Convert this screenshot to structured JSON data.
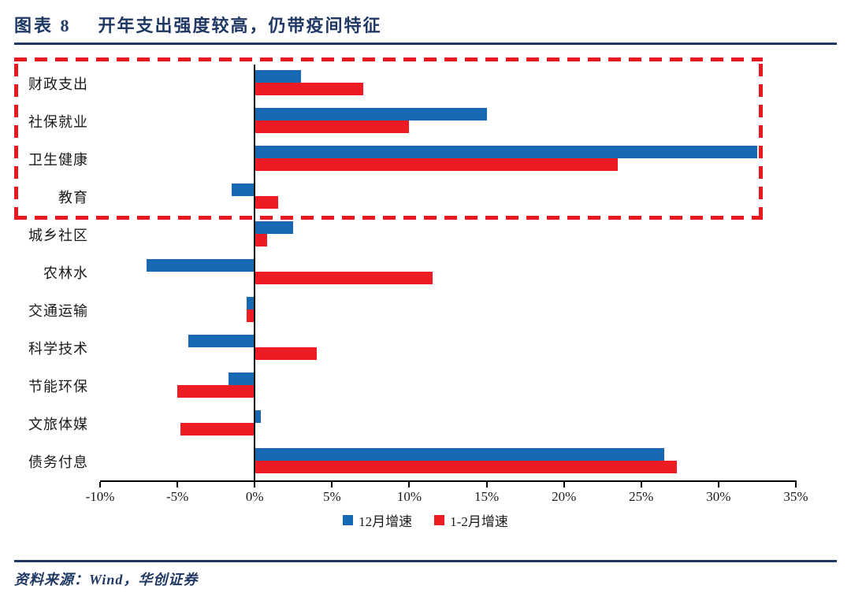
{
  "header": {
    "figure_label": "图表 8",
    "title": "开年支出强度较高，仍带疫间特征"
  },
  "chart_data": {
    "type": "bar",
    "orientation": "horizontal",
    "title": "开年支出强度较高，仍带疫间特征",
    "categories": [
      "财政支出",
      "社保就业",
      "卫生健康",
      "教育",
      "城乡社区",
      "农林水",
      "交通运输",
      "科学技术",
      "节能环保",
      "文旅体媒",
      "债务付息"
    ],
    "series": [
      {
        "name": "12月增速",
        "color": "#1868B4",
        "values": [
          3,
          15,
          32.5,
          -1.5,
          2.5,
          -7,
          -0.5,
          -4.3,
          -1.7,
          0.4,
          26.5
        ]
      },
      {
        "name": "1-2月增速",
        "color": "#ED1C24",
        "values": [
          7,
          10,
          23.5,
          1.5,
          0.8,
          11.5,
          -0.5,
          4,
          -5,
          -4.8,
          27.3
        ]
      }
    ],
    "xlim": [
      -10,
      35
    ],
    "x_ticks": [
      "-10%",
      "-5%",
      "0%",
      "5%",
      "10%",
      "15%",
      "20%",
      "25%",
      "30%",
      "35%"
    ],
    "x_tick_values": [
      -10,
      -5,
      0,
      5,
      10,
      15,
      20,
      25,
      30,
      35
    ],
    "grid": false,
    "legend_position": "bottom",
    "highlight": {
      "categories": [
        "财政支出",
        "社保就业",
        "卫生健康",
        "教育"
      ],
      "color": "#E8191F"
    }
  },
  "legend": [
    {
      "label": "12月增速",
      "color": "#1868B4"
    },
    {
      "label": "1-2月增速",
      "color": "#ED1C24"
    }
  ],
  "footer": {
    "source": "资料来源：Wind，华创证券"
  },
  "colors": {
    "navy": "#1F3864",
    "bar_blue": "#1868B4",
    "bar_red": "#ED1C24",
    "highlight_red": "#E8191F"
  }
}
